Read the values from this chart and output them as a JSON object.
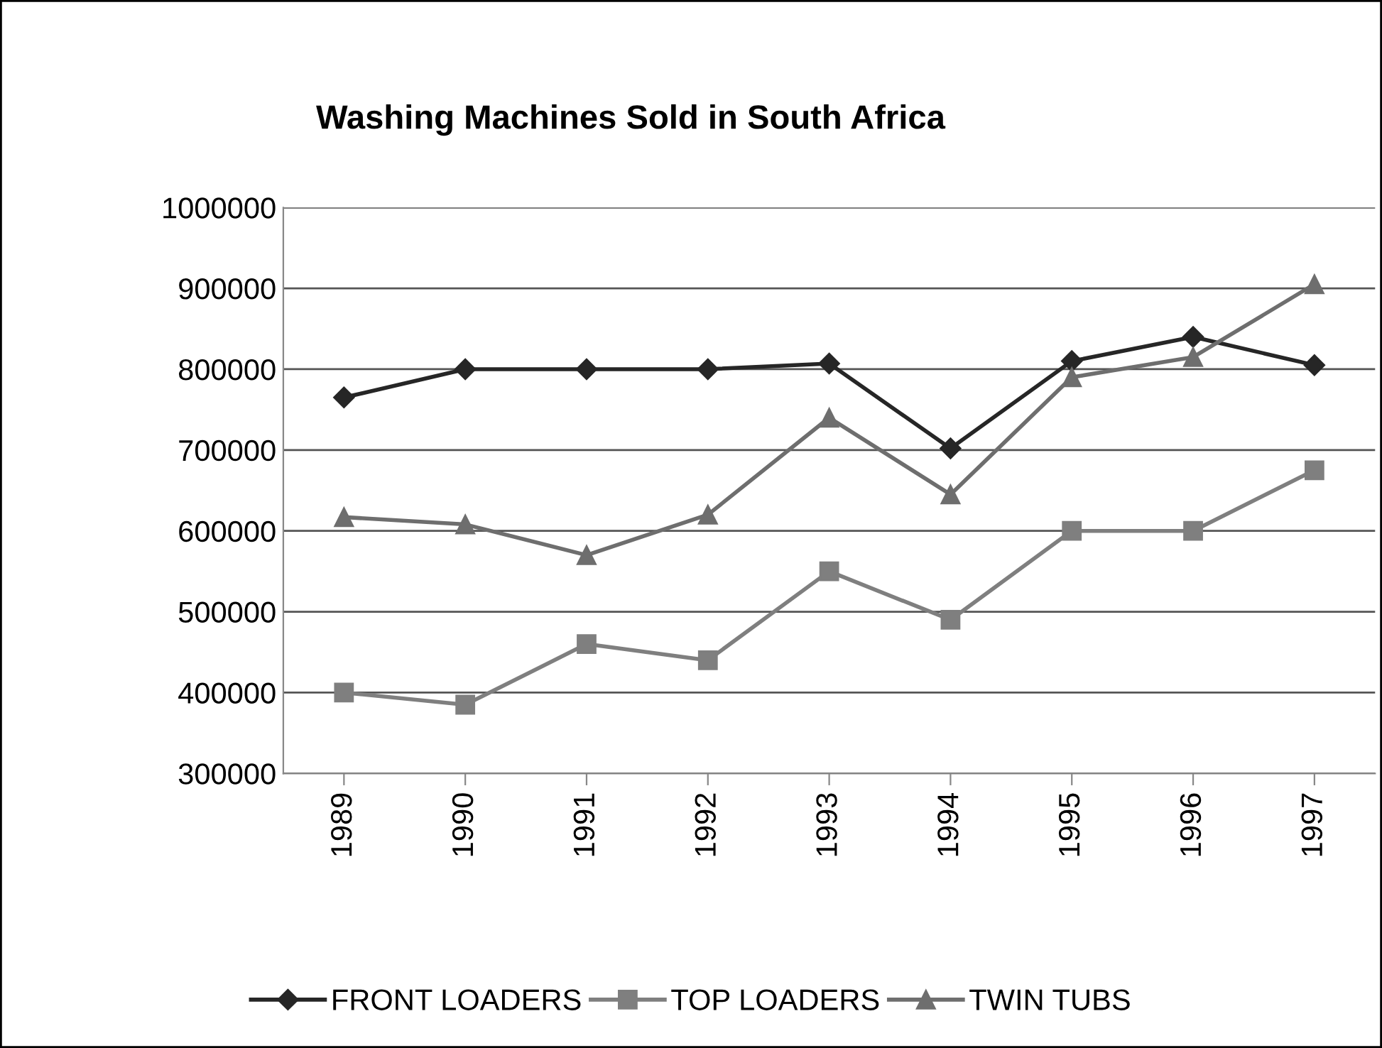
{
  "chart_data": {
    "type": "line",
    "title": "Washing Machines Sold in South Africa",
    "categories": [
      "1989",
      "1990",
      "1991",
      "1992",
      "1993",
      "1994",
      "1995",
      "1996",
      "1997"
    ],
    "series": [
      {
        "name": "FRONT LOADERS",
        "color": "#262626",
        "marker": "diamond",
        "values": [
          765000,
          800000,
          800000,
          800000,
          807000,
          702000,
          810000,
          840000,
          805000
        ]
      },
      {
        "name": "TOP LOADERS",
        "color": "#7f7f7f",
        "marker": "square",
        "values": [
          400000,
          385000,
          460000,
          440000,
          550000,
          490000,
          600000,
          600000,
          675000
        ]
      },
      {
        "name": "TWIN TUBS",
        "color": "#6e6e6e",
        "marker": "triangle",
        "values": [
          617000,
          608000,
          570000,
          620000,
          740000,
          645000,
          790000,
          815000,
          905000
        ]
      }
    ],
    "ylim": [
      300000,
      1000000
    ],
    "yticks": [
      300000,
      400000,
      500000,
      600000,
      700000,
      800000,
      900000,
      1000000
    ],
    "grid": "y",
    "legend": "bottom",
    "line_style": "solid"
  }
}
